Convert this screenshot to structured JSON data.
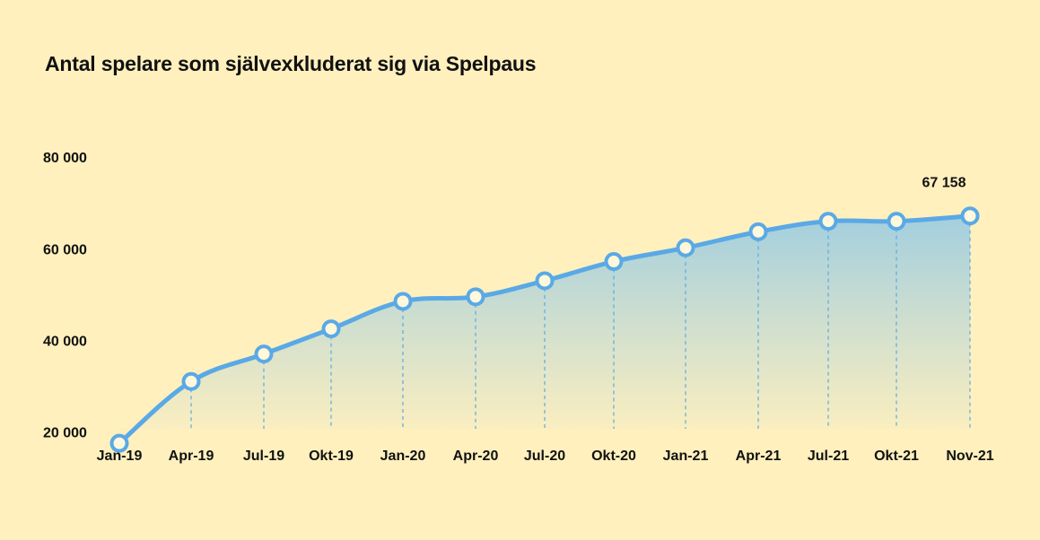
{
  "chart_data": {
    "type": "area",
    "title": "Antal spelare som självexkluderat sig via Spelpaus",
    "xlabel": "",
    "ylabel": "",
    "categories": [
      "Jan-19",
      "Apr-19",
      "Jul-19",
      "Okt-19",
      "Jan-20",
      "Apr-20",
      "Jul-20",
      "Okt-20",
      "Jan-21",
      "Apr-21",
      "Jul-21",
      "Okt-21",
      "Nov-21"
    ],
    "series": [
      {
        "name": "Antal spelare",
        "values": [
          17500,
          31000,
          37000,
          42500,
          48500,
          49500,
          53000,
          57200,
          60200,
          63700,
          66000,
          66000,
          67158
        ]
      }
    ],
    "ylim": [
      14000,
      82000
    ],
    "y_ticks": [
      20000,
      40000,
      60000,
      80000
    ],
    "y_tick_labels": [
      "20 000",
      "40 000",
      "60 000",
      "80 000"
    ],
    "data_labels": [
      {
        "category": "Nov-21",
        "text": "67 158"
      }
    ],
    "grid": false,
    "legend": "none",
    "colors": {
      "background": "#FFF0BE",
      "line": "#5AA9E6",
      "marker_fill": "#FFF8DA",
      "drop_line": "#5AA9E6",
      "area_top": "#9ECDE0",
      "area_bottom": "#FFF0BE"
    }
  }
}
